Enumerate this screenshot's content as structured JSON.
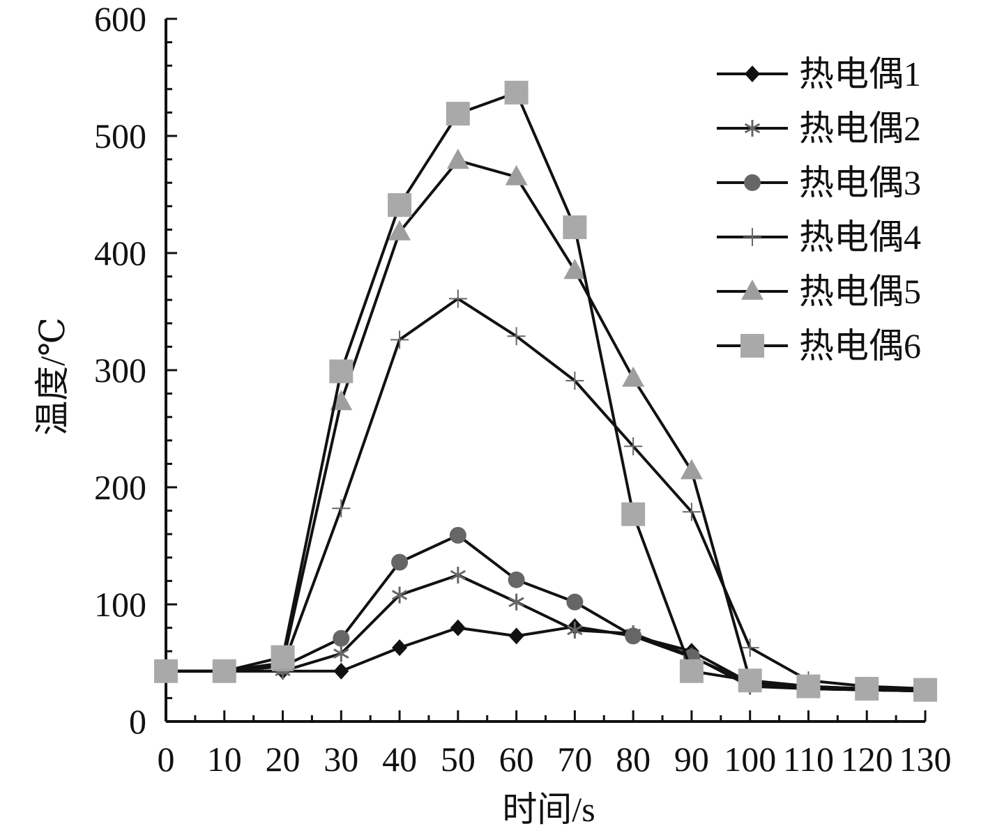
{
  "chart_data": {
    "type": "line",
    "title": "",
    "xlabel": "时间/s",
    "ylabel": "温度/℃",
    "x": [
      0,
      10,
      20,
      30,
      40,
      50,
      60,
      70,
      80,
      90,
      100,
      110,
      120,
      130
    ],
    "x_tick_labels": [
      "0",
      "10",
      "20",
      "30",
      "40",
      "50",
      "60",
      "70",
      "80",
      "90",
      "100",
      "110",
      "120",
      "130"
    ],
    "xlim": [
      0,
      130
    ],
    "ylim": [
      0,
      600
    ],
    "y_ticks": [
      0,
      100,
      200,
      300,
      400,
      500,
      600
    ],
    "y_tick_labels": [
      "0",
      "100",
      "200",
      "300",
      "400",
      "500",
      "600"
    ],
    "grid": false,
    "legend_position": "top-right",
    "series": [
      {
        "name": "热电偶1",
        "marker": "diamond",
        "marker_color": "#111111",
        "values": [
          43,
          43,
          43,
          43,
          63,
          80,
          73,
          81,
          73,
          60,
          33,
          28,
          27,
          26
        ]
      },
      {
        "name": "热电偶2",
        "marker": "asterisk",
        "marker_color": "#666666",
        "values": [
          43,
          43,
          43,
          58,
          108,
          125,
          102,
          78,
          75,
          56,
          30,
          28,
          27,
          26
        ]
      },
      {
        "name": "热电偶3",
        "marker": "circle",
        "marker_color": "#666666",
        "values": [
          43,
          43,
          47,
          71,
          136,
          159,
          121,
          102,
          73,
          55,
          33,
          28,
          27,
          26
        ]
      },
      {
        "name": "热电偶4",
        "marker": "plus",
        "marker_color": "#666666",
        "values": [
          43,
          43,
          47,
          182,
          326,
          361,
          329,
          291,
          235,
          179,
          63,
          35,
          30,
          28
        ]
      },
      {
        "name": "热电偶5",
        "marker": "triangle",
        "marker_color": "#9e9e9e",
        "values": [
          43,
          43,
          50,
          273,
          418,
          479,
          465,
          385,
          293,
          214,
          35,
          30,
          28,
          27
        ]
      },
      {
        "name": "热电偶6",
        "marker": "square",
        "marker_color": "#a9a9a9",
        "values": [
          43,
          43,
          55,
          299,
          441,
          519,
          537,
          422,
          177,
          43,
          35,
          30,
          28,
          27
        ]
      }
    ],
    "colors": {
      "line": "#111111",
      "axis": "#111111"
    }
  }
}
